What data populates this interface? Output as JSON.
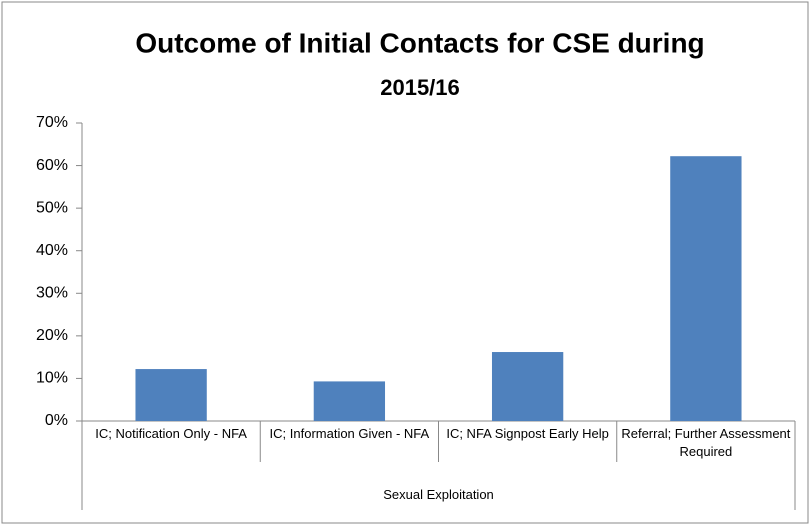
{
  "chart_data": {
    "type": "bar",
    "title": [
      "Outcome of Initial Contacts for CSE during",
      "2015/16"
    ],
    "categories": [
      "IC; Notification Only - NFA",
      "IC; Information Given - NFA",
      "IC; NFA Signpost Early Help",
      "Referral; Further Assessment Required"
    ],
    "group": "Sexual Exploitation",
    "values": [
      12.2,
      9.3,
      16.2,
      62.2
    ],
    "color": "#4f81bd",
    "ylim": [
      0,
      70
    ],
    "yticks": [
      {
        "value": 0,
        "label": "0%"
      },
      {
        "value": 10,
        "label": "10%"
      },
      {
        "value": 20,
        "label": "20%"
      },
      {
        "value": 30,
        "label": "30%"
      },
      {
        "value": 40,
        "label": "40%"
      },
      {
        "value": 50,
        "label": "50%"
      },
      {
        "value": 60,
        "label": "60%"
      },
      {
        "value": 70,
        "label": "70%"
      }
    ],
    "grid": false
  }
}
